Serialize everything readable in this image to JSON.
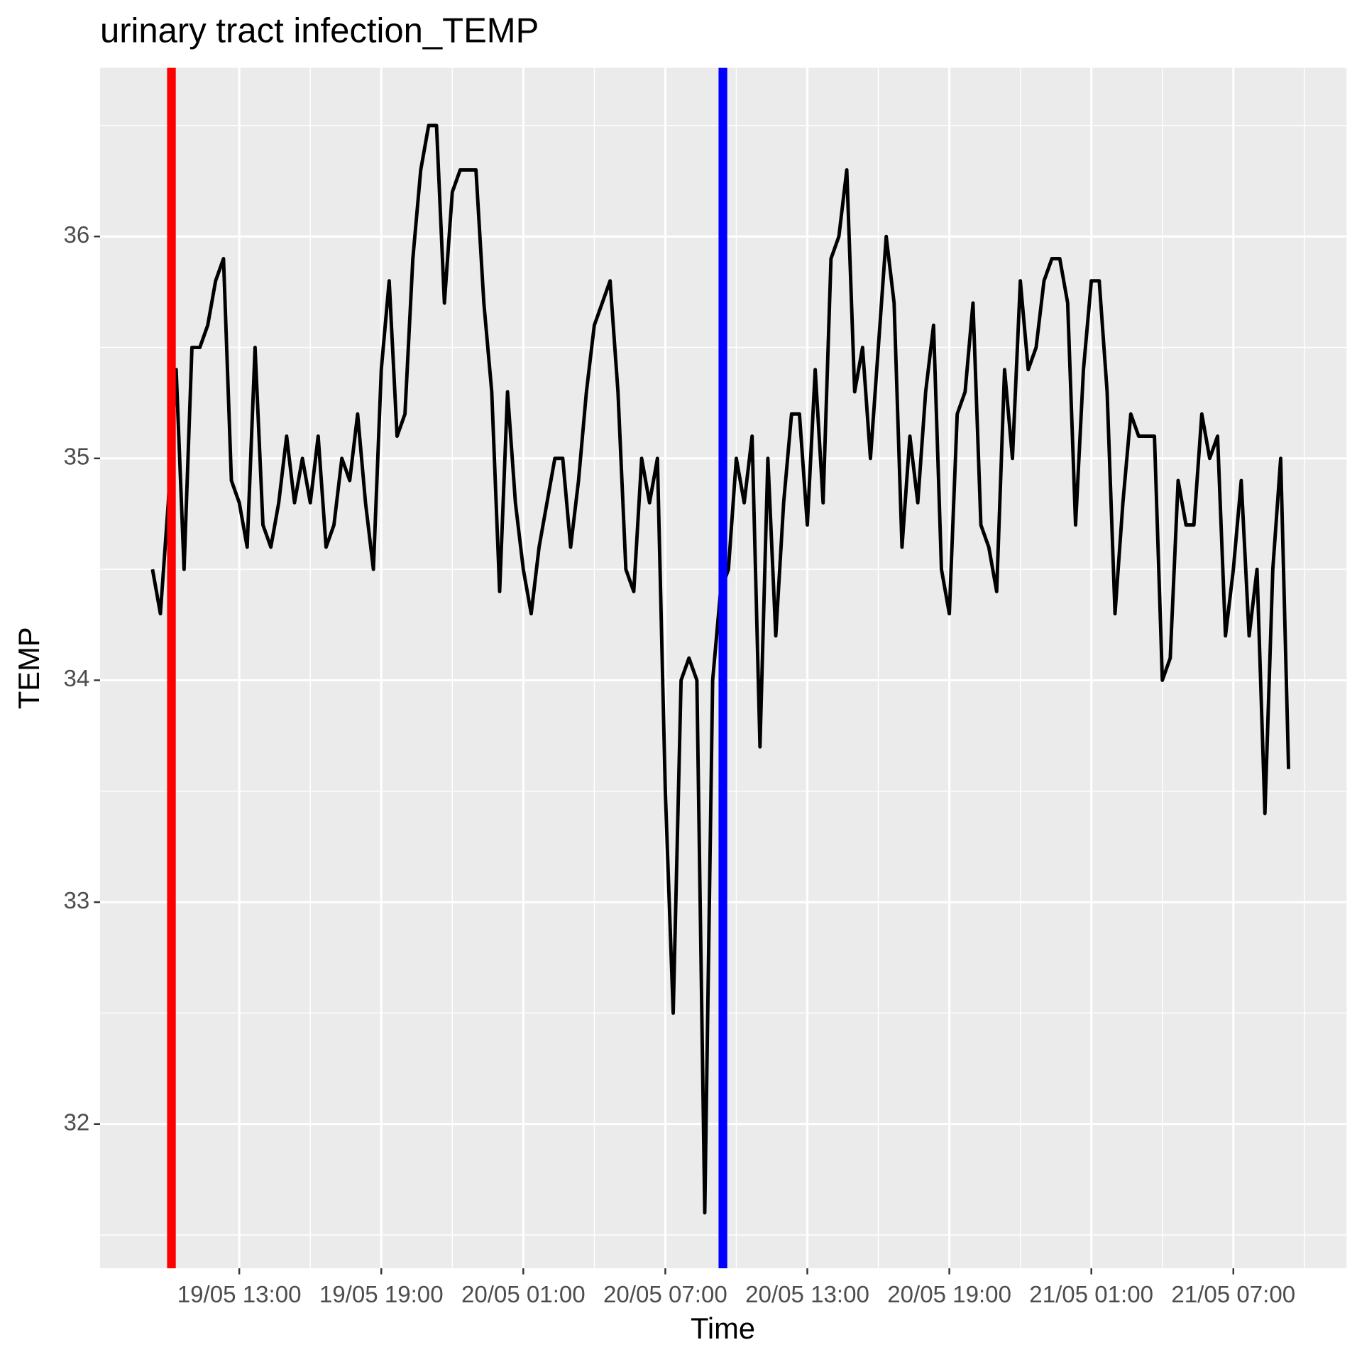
{
  "chart_data": {
    "type": "line",
    "title": "urinary tract infection_TEMP",
    "x_label": "Time",
    "y_label": "TEMP",
    "x": [
      "19/05 09:20",
      "19/05 09:40",
      "19/05 10:00",
      "19/05 10:20",
      "19/05 10:40",
      "19/05 11:00",
      "19/05 11:20",
      "19/05 11:40",
      "19/05 12:00",
      "19/05 12:20",
      "19/05 12:40",
      "19/05 13:00",
      "19/05 13:20",
      "19/05 13:40",
      "19/05 14:00",
      "19/05 14:20",
      "19/05 14:40",
      "19/05 15:00",
      "19/05 15:20",
      "19/05 15:40",
      "19/05 16:00",
      "19/05 16:20",
      "19/05 16:40",
      "19/05 17:00",
      "19/05 17:20",
      "19/05 17:40",
      "19/05 18:00",
      "19/05 18:20",
      "19/05 18:40",
      "19/05 19:00",
      "19/05 19:20",
      "19/05 19:40",
      "19/05 20:00",
      "19/05 20:20",
      "19/05 20:40",
      "19/05 21:00",
      "19/05 21:20",
      "19/05 21:40",
      "19/05 22:00",
      "19/05 22:20",
      "19/05 22:40",
      "19/05 23:00",
      "19/05 23:20",
      "19/05 23:40",
      "20/05 00:00",
      "20/05 00:20",
      "20/05 00:40",
      "20/05 01:00",
      "20/05 01:20",
      "20/05 01:40",
      "20/05 02:00",
      "20/05 02:20",
      "20/05 02:40",
      "20/05 03:00",
      "20/05 03:20",
      "20/05 03:40",
      "20/05 04:00",
      "20/05 04:20",
      "20/05 04:40",
      "20/05 05:00",
      "20/05 05:20",
      "20/05 05:40",
      "20/05 06:00",
      "20/05 06:20",
      "20/05 06:40",
      "20/05 07:00",
      "20/05 07:20",
      "20/05 07:40",
      "20/05 08:00",
      "20/05 08:20",
      "20/05 08:40",
      "20/05 09:00",
      "20/05 09:20",
      "20/05 09:40",
      "20/05 10:00",
      "20/05 10:20",
      "20/05 10:40",
      "20/05 11:00",
      "20/05 11:20",
      "20/05 11:40",
      "20/05 12:00",
      "20/05 12:20",
      "20/05 12:40",
      "20/05 13:00",
      "20/05 13:20",
      "20/05 13:40",
      "20/05 14:00",
      "20/05 14:20",
      "20/05 14:40",
      "20/05 15:00",
      "20/05 15:20",
      "20/05 15:40",
      "20/05 16:00",
      "20/05 16:20",
      "20/05 16:40",
      "20/05 17:00",
      "20/05 17:20",
      "20/05 17:40",
      "20/05 18:00",
      "20/05 18:20",
      "20/05 18:40",
      "20/05 19:00",
      "20/05 19:20",
      "20/05 19:40",
      "20/05 20:00",
      "20/05 20:20",
      "20/05 20:40",
      "20/05 21:00",
      "20/05 21:20",
      "20/05 21:40",
      "20/05 22:00",
      "20/05 22:20",
      "20/05 22:40",
      "20/05 23:00",
      "20/05 23:20",
      "20/05 23:40",
      "21/05 00:00",
      "21/05 00:20",
      "21/05 00:40",
      "21/05 01:00",
      "21/05 01:20",
      "21/05 01:40",
      "21/05 02:00",
      "21/05 02:20",
      "21/05 02:40",
      "21/05 03:00",
      "21/05 03:20",
      "21/05 03:40",
      "21/05 04:00",
      "21/05 04:20",
      "21/05 04:40",
      "21/05 05:00",
      "21/05 05:20",
      "21/05 05:40",
      "21/05 06:00",
      "21/05 06:20",
      "21/05 06:40",
      "21/05 07:00",
      "21/05 07:20",
      "21/05 07:40",
      "21/05 08:00",
      "21/05 08:20",
      "21/05 08:40",
      "21/05 09:00",
      "21/05 09:20"
    ],
    "values": [
      34.5,
      34.3,
      34.8,
      35.4,
      34.5,
      35.5,
      35.5,
      35.6,
      35.8,
      35.9,
      34.9,
      34.8,
      34.6,
      35.5,
      34.7,
      34.6,
      34.8,
      35.1,
      34.8,
      35.0,
      34.8,
      35.1,
      34.6,
      34.7,
      35.0,
      34.9,
      35.2,
      34.8,
      34.5,
      35.4,
      35.8,
      35.1,
      35.2,
      35.9,
      36.3,
      36.5,
      36.5,
      35.7,
      36.2,
      36.3,
      36.3,
      36.3,
      35.7,
      35.3,
      34.4,
      35.3,
      34.8,
      34.5,
      34.3,
      34.6,
      34.8,
      35.0,
      35.0,
      34.6,
      34.9,
      35.3,
      35.6,
      35.7,
      35.8,
      35.3,
      34.5,
      34.4,
      35.0,
      34.8,
      35.0,
      33.5,
      32.5,
      34.0,
      34.1,
      34.0,
      31.6,
      34.0,
      34.4,
      34.5,
      35.0,
      34.8,
      35.1,
      33.7,
      35.0,
      34.2,
      34.8,
      35.2,
      35.2,
      34.7,
      35.4,
      34.8,
      35.9,
      36.0,
      36.3,
      35.3,
      35.5,
      35.0,
      35.5,
      36.0,
      35.7,
      34.6,
      35.1,
      34.8,
      35.3,
      35.6,
      34.5,
      34.3,
      35.2,
      35.3,
      35.7,
      34.7,
      34.6,
      34.4,
      35.4,
      35.0,
      35.8,
      35.4,
      35.5,
      35.8,
      35.9,
      35.9,
      35.7,
      34.7,
      35.4,
      35.8,
      35.8,
      35.3,
      34.3,
      34.8,
      35.2,
      35.1,
      35.1,
      35.1,
      34.0,
      34.1,
      34.9,
      34.7,
      34.7,
      35.2,
      35.0,
      35.1,
      34.2,
      34.5,
      34.9,
      34.2,
      34.5,
      33.4,
      34.5,
      35.0,
      33.6
    ],
    "color": "#000000",
    "vlines": [
      {
        "x": "19/05 10:08",
        "color": "#ff0000"
      },
      {
        "x": "20/05 09:26",
        "color": "#0000ff"
      }
    ],
    "xlim": [
      "19/05 07:07",
      "21/05 11:47"
    ],
    "xticks": [
      "19/05 13:00",
      "19/05 19:00",
      "20/05 01:00",
      "20/05 07:00",
      "20/05 13:00",
      "20/05 19:00",
      "21/05 01:00",
      "21/05 07:00"
    ],
    "ylim": [
      31.35,
      36.76
    ],
    "yticks": [
      32,
      33,
      34,
      35,
      36
    ],
    "grid": true
  }
}
